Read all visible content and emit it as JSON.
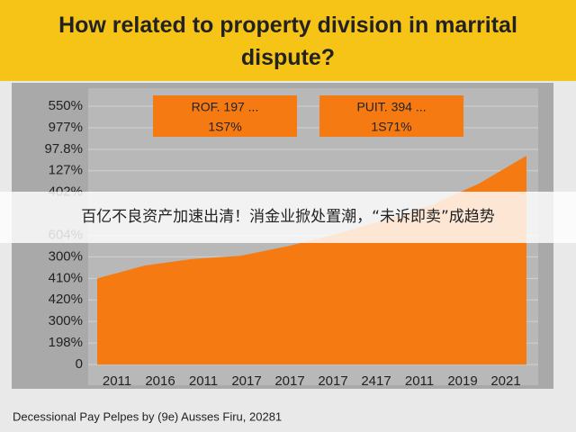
{
  "chart_data": {
    "type": "area",
    "title": "How related to property division in marrital dispute?",
    "categories": [
      "2011",
      "2016",
      "2011",
      "2017",
      "2017",
      "2017",
      "2417",
      "2011",
      "2019",
      "2021"
    ],
    "values": [
      4.0,
      4.6,
      4.9,
      5.05,
      5.5,
      6.05,
      6.7,
      7.4,
      8.4,
      9.7
    ],
    "color": "#f57a12",
    "ylim": [
      0,
      12
    ],
    "yticks": [
      0,
      {
        "value": 1,
        "label": "198%"
      },
      {
        "value": 2,
        "label": "300%"
      },
      {
        "value": 3,
        "label": "420%"
      },
      {
        "value": 4,
        "label": "410%"
      },
      {
        "value": 5,
        "label": "300%"
      },
      {
        "value": 6,
        "label": "604%"
      },
      {
        "value": 8,
        "label": "402%"
      },
      {
        "value": 9,
        "label": "127%"
      },
      {
        "value": 10,
        "label": "97.8%"
      },
      {
        "value": 11,
        "label": "977%"
      },
      {
        "value": 12,
        "label": "550%"
      }
    ],
    "grid": true,
    "annotations": [
      [
        "ROF. 197 ...",
        "1S7%"
      ],
      [
        "PUIT. 394 ...",
        "1S71%"
      ]
    ],
    "source": "Decessional Pay Pelpes by (9e) Ausses Firu, 20281"
  },
  "overlay_text": "百亿不良资产加速出清！消金业掀处置潮，“未诉即卖”成趋势"
}
